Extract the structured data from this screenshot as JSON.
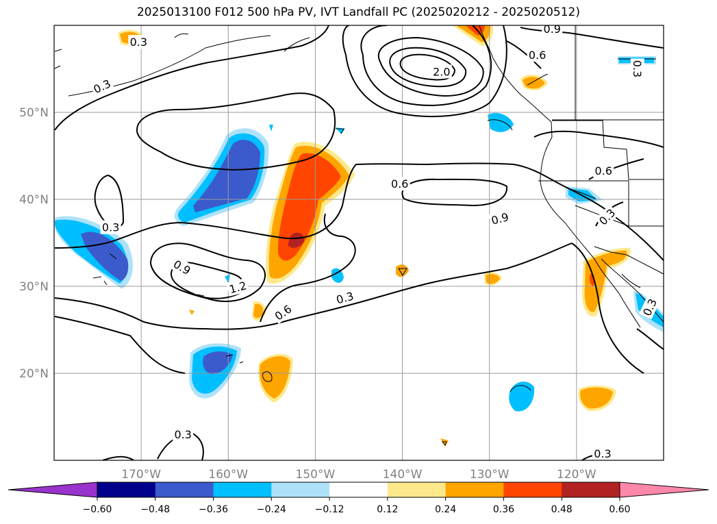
{
  "chart_data": {
    "type": "heatmap",
    "title": "2025013100 F012 500 hPa PV, IVT Landfall PC (2025020212 - 2025020512)",
    "lon_range": [
      -180,
      -110
    ],
    "lat_range": [
      10,
      60
    ],
    "x_ticks": [
      {
        "value": -170,
        "label": "170°W"
      },
      {
        "value": -160,
        "label": "160°W"
      },
      {
        "value": -150,
        "label": "150°W"
      },
      {
        "value": -140,
        "label": "140°W"
      },
      {
        "value": -130,
        "label": "130°W"
      },
      {
        "value": -120,
        "label": "120°W"
      }
    ],
    "y_ticks": [
      {
        "value": 20,
        "label": "20°N"
      },
      {
        "value": 30,
        "label": "30°N"
      },
      {
        "value": 40,
        "label": "40°N"
      },
      {
        "value": 50,
        "label": "50°N"
      }
    ],
    "grid": true,
    "colorbar": {
      "orientation": "horizontal",
      "extend": "both",
      "levels": [
        -0.6,
        -0.48,
        -0.36,
        -0.24,
        -0.12,
        0.12,
        0.24,
        0.36,
        0.48,
        0.6
      ],
      "tick_labels": [
        "−0.60",
        "−0.48",
        "−0.36",
        "−0.24",
        "−0.12",
        "0.12",
        "0.24",
        "0.36",
        "0.48",
        "0.60"
      ],
      "colors": [
        "#9933cc",
        "#00008b",
        "#3b5bcc",
        "#00bfff",
        "#aee2fa",
        "#ffffff",
        "#fde98c",
        "#ffa500",
        "#ff4500",
        "#b22222",
        "#ff88aa"
      ]
    },
    "contour_labels": [
      {
        "text": "0.3",
        "lon": -170.3,
        "lat": 58.1,
        "angle": 0
      },
      {
        "text": "0.3",
        "lon": -174.5,
        "lat": 53.0,
        "angle": -25
      },
      {
        "text": "0.9",
        "lon": -122.8,
        "lat": 59.6,
        "angle": 0
      },
      {
        "text": "0.6",
        "lon": -124.5,
        "lat": 56.6,
        "angle": 0
      },
      {
        "text": "2.0",
        "lon": -135.5,
        "lat": 54.7,
        "angle": 0
      },
      {
        "text": "0.3",
        "lon": -113.0,
        "lat": 55.0,
        "angle": 90
      },
      {
        "text": "0.6",
        "lon": -140.3,
        "lat": 41.8,
        "angle": 0
      },
      {
        "text": "0.9",
        "lon": -128.8,
        "lat": 37.8,
        "angle": -15
      },
      {
        "text": "0.6",
        "lon": -116.9,
        "lat": 43.3,
        "angle": 0
      },
      {
        "text": "0.3",
        "lon": -116.5,
        "lat": 38.0,
        "angle": -45
      },
      {
        "text": "0.3",
        "lon": -173.5,
        "lat": 36.8,
        "angle": 0
      },
      {
        "text": "0.9",
        "lon": -165.3,
        "lat": 32.2,
        "angle": 30
      },
      {
        "text": "1.2",
        "lon": -158.9,
        "lat": 29.9,
        "angle": -15
      },
      {
        "text": "0.6",
        "lon": -153.7,
        "lat": 27.0,
        "angle": -35
      },
      {
        "text": "0.3",
        "lon": -146.6,
        "lat": 28.7,
        "angle": -15
      },
      {
        "text": "0.3",
        "lon": -165.2,
        "lat": 13.0,
        "angle": 0
      },
      {
        "text": "0.3",
        "lon": -117.0,
        "lat": 10.8,
        "angle": 0
      },
      {
        "text": "0.3",
        "lon": -111.6,
        "lat": 27.6,
        "angle": -65
      }
    ]
  }
}
